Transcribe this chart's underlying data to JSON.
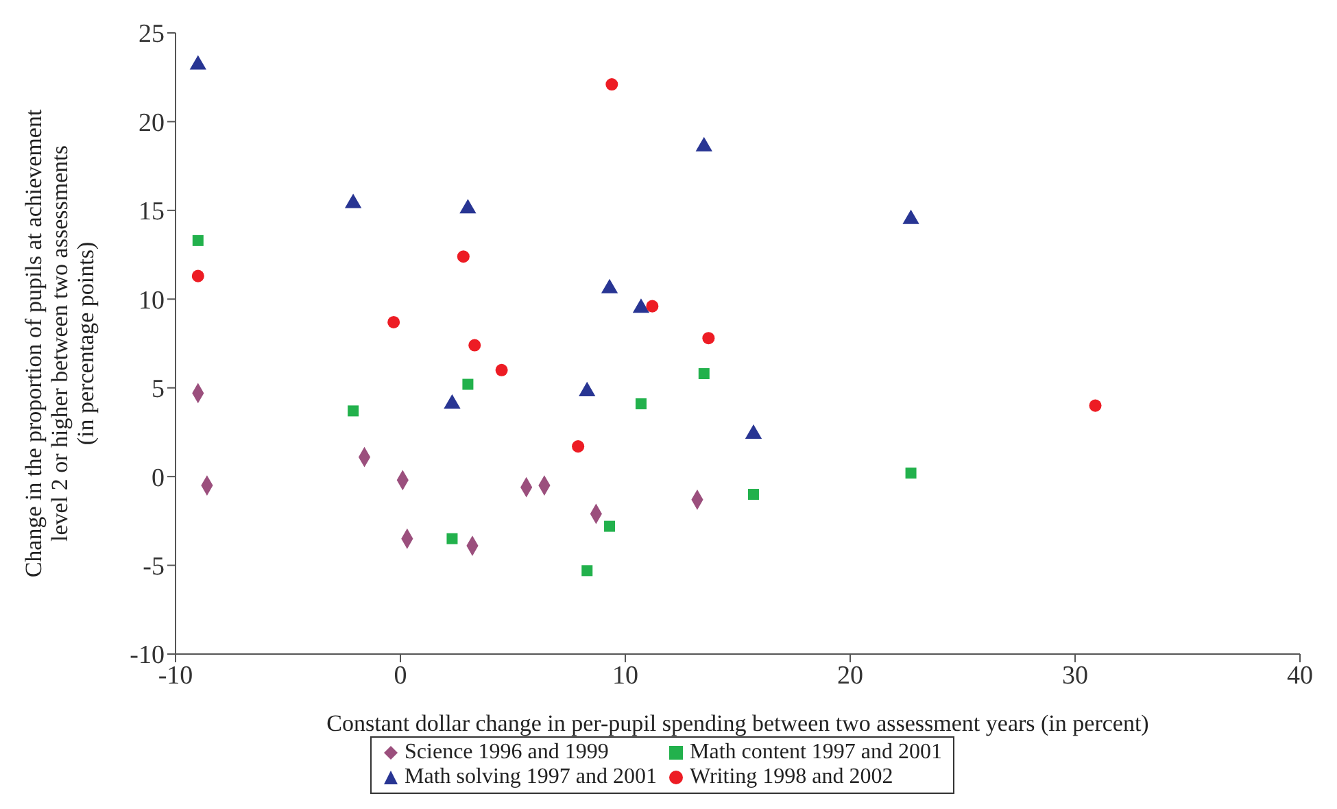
{
  "chart_data": {
    "type": "scatter",
    "xlabel": "Constant dollar change in per-pupil spending between two assessment years (in percent)",
    "ylabel": "Change in the proportion of pupils at achievement\nlevel 2 or higher between two assessments\n(in percentage points)",
    "xlim": [
      -10,
      40
    ],
    "xticks": [
      -10,
      0,
      10,
      20,
      30,
      40
    ],
    "ylim": [
      -10,
      25
    ],
    "yticks": [
      -10,
      -5,
      0,
      5,
      10,
      15,
      20,
      25
    ],
    "grid": false,
    "legend": "bottom",
    "series": [
      {
        "name": "Science 1996 and 1999",
        "color": "#9b4f7d",
        "marker": "diamond",
        "x": [
          -9.0,
          -8.6,
          -1.6,
          0.1,
          0.3,
          3.2,
          5.6,
          6.4,
          8.7,
          13.2
        ],
        "values": [
          4.7,
          -0.5,
          1.1,
          -0.2,
          -3.5,
          -3.9,
          -0.6,
          -0.5,
          -2.1,
          -1.3
        ]
      },
      {
        "name": "Math content 1997 and 2001",
        "color": "#22b14c",
        "marker": "square",
        "x": [
          -9.0,
          -2.1,
          3.0,
          2.3,
          8.3,
          9.3,
          10.7,
          13.5,
          15.7,
          22.7
        ],
        "values": [
          13.3,
          3.7,
          5.2,
          -3.5,
          -5.3,
          -2.8,
          4.1,
          5.8,
          -1.0,
          0.2
        ]
      },
      {
        "name": "Math solving 1997 and 2001",
        "color": "#283593",
        "marker": "triangle",
        "x": [
          -9.0,
          -2.1,
          3.0,
          2.3,
          13.5,
          22.7,
          9.3,
          10.7,
          8.3,
          15.7
        ],
        "values": [
          23.2,
          15.4,
          15.1,
          4.1,
          18.6,
          14.5,
          10.6,
          9.5,
          4.8,
          2.4
        ]
      },
      {
        "name": "Writing 1998 and 2002",
        "color": "#ed1c24",
        "marker": "circle",
        "x": [
          -9.0,
          -0.3,
          2.8,
          3.3,
          4.5,
          9.4,
          11.2,
          13.7,
          7.9,
          30.9
        ],
        "values": [
          11.3,
          8.7,
          12.4,
          7.4,
          6.0,
          22.1,
          9.6,
          7.8,
          1.7,
          4.0
        ]
      }
    ]
  }
}
